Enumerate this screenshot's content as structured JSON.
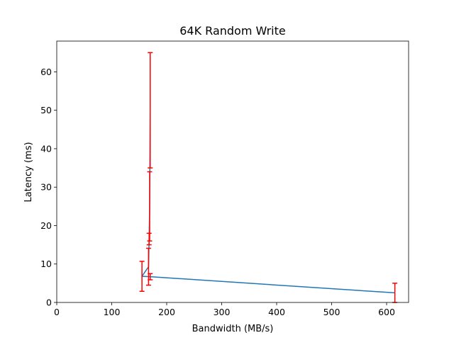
{
  "chart_data": {
    "type": "line",
    "title": "64K  Random Write",
    "xlabel": "Bandwidth (MB/s)",
    "ylabel": "Latency (ms)",
    "xlim": [
      0,
      640
    ],
    "ylim": [
      0,
      68
    ],
    "xticks": [
      0,
      100,
      200,
      300,
      400,
      500,
      600
    ],
    "yticks": [
      0,
      10,
      20,
      30,
      40,
      50,
      60
    ],
    "grid": false,
    "series": [
      {
        "color": "#1f77b4",
        "error_bar_color": "#ff0000",
        "points": [
          {
            "x": 615,
            "y": 2.5,
            "err": 2.5
          },
          {
            "x": 170,
            "y": 6.7,
            "err": 0.8
          },
          {
            "x": 155,
            "y": 6.8,
            "err": 3.9
          },
          {
            "x": 167,
            "y": 9.3,
            "err": 4.8
          },
          {
            "x": 168,
            "y": 16.5,
            "err": 1.5
          },
          {
            "x": 169,
            "y": 25.0,
            "err": 9.0
          },
          {
            "x": 170,
            "y": 50.0,
            "err": 15.0
          }
        ]
      }
    ]
  }
}
